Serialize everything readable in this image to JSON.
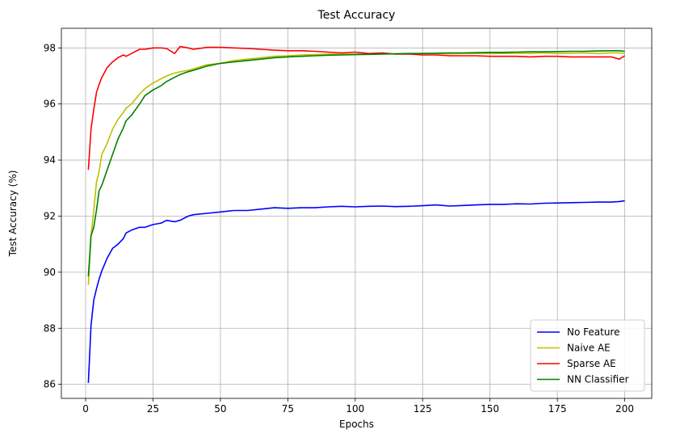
{
  "chart_data": {
    "type": "line",
    "title": "Test Accuracy",
    "xlabel": "Epochs",
    "ylabel": "Test Accuracy (%)",
    "xlim": [
      -9,
      210
    ],
    "ylim": [
      85.5,
      98.7
    ],
    "xticks": [
      0,
      25,
      50,
      75,
      100,
      125,
      150,
      175,
      200
    ],
    "yticks": [
      86,
      88,
      90,
      92,
      94,
      96,
      98
    ],
    "grid": true,
    "legend_position": "lower-right",
    "x": [
      1,
      2,
      3,
      4,
      5,
      6,
      8,
      10,
      12,
      14,
      15,
      17,
      20,
      22,
      25,
      28,
      30,
      33,
      35,
      38,
      40,
      45,
      50,
      55,
      60,
      65,
      70,
      75,
      80,
      85,
      90,
      95,
      100,
      105,
      110,
      115,
      120,
      125,
      130,
      135,
      140,
      145,
      150,
      155,
      160,
      165,
      170,
      175,
      180,
      185,
      190,
      195,
      198,
      200
    ],
    "series": [
      {
        "name": "No Feature",
        "color": "#0000ff",
        "values": [
          86.05,
          88.1,
          89.0,
          89.4,
          89.75,
          90.05,
          90.5,
          90.85,
          91.0,
          91.2,
          91.4,
          91.5,
          91.6,
          91.6,
          91.7,
          91.75,
          91.85,
          91.8,
          91.85,
          92.0,
          92.05,
          92.1,
          92.15,
          92.2,
          92.2,
          92.25,
          92.3,
          92.28,
          92.3,
          92.3,
          92.33,
          92.35,
          92.33,
          92.35,
          92.36,
          92.34,
          92.35,
          92.37,
          92.4,
          92.36,
          92.38,
          92.4,
          92.42,
          92.42,
          92.44,
          92.43,
          92.46,
          92.47,
          92.48,
          92.49,
          92.5,
          92.5,
          92.52,
          92.55
        ]
      },
      {
        "name": "Naive AE",
        "color": "#bfbf00",
        "values": [
          89.55,
          91.3,
          92.2,
          93.2,
          93.6,
          94.2,
          94.6,
          95.1,
          95.45,
          95.7,
          95.85,
          96.0,
          96.35,
          96.55,
          96.75,
          96.9,
          97.0,
          97.1,
          97.15,
          97.2,
          97.25,
          97.4,
          97.45,
          97.55,
          97.6,
          97.65,
          97.7,
          97.72,
          97.75,
          97.76,
          97.78,
          97.78,
          97.78,
          97.79,
          97.8,
          97.78,
          97.79,
          97.8,
          97.8,
          97.79,
          97.8,
          97.81,
          97.8,
          97.8,
          97.81,
          97.8,
          97.82,
          97.8,
          97.81,
          97.82,
          97.8,
          97.82,
          97.82,
          97.8
        ]
      },
      {
        "name": "Sparse AE",
        "color": "#ff0000",
        "values": [
          93.65,
          95.1,
          95.8,
          96.4,
          96.7,
          96.95,
          97.3,
          97.5,
          97.65,
          97.75,
          97.7,
          97.8,
          97.95,
          97.95,
          98.0,
          98.0,
          97.98,
          97.8,
          98.05,
          98.0,
          97.95,
          98.02,
          98.02,
          98.0,
          97.98,
          97.95,
          97.92,
          97.9,
          97.9,
          97.88,
          97.85,
          97.82,
          97.85,
          97.8,
          97.82,
          97.78,
          97.78,
          97.75,
          97.75,
          97.72,
          97.72,
          97.72,
          97.7,
          97.7,
          97.7,
          97.68,
          97.7,
          97.7,
          97.68,
          97.68,
          97.68,
          97.68,
          97.6,
          97.72
        ]
      },
      {
        "name": "NN Classifier",
        "color": "#008000",
        "values": [
          89.85,
          91.3,
          91.6,
          92.2,
          92.9,
          93.1,
          93.65,
          94.2,
          94.75,
          95.15,
          95.4,
          95.6,
          96.0,
          96.3,
          96.5,
          96.65,
          96.8,
          96.95,
          97.05,
          97.15,
          97.2,
          97.35,
          97.45,
          97.5,
          97.55,
          97.6,
          97.65,
          97.68,
          97.7,
          97.72,
          97.74,
          97.75,
          97.76,
          97.77,
          97.78,
          97.79,
          97.8,
          97.8,
          97.81,
          97.82,
          97.82,
          97.83,
          97.84,
          97.84,
          97.85,
          97.86,
          97.86,
          97.87,
          97.88,
          97.88,
          97.89,
          97.9,
          97.9,
          97.88
        ]
      }
    ]
  }
}
